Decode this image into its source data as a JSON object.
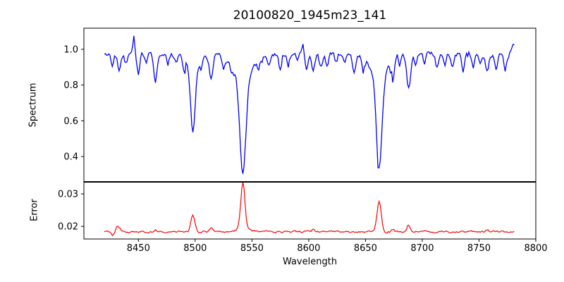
{
  "chart_data": {
    "type": "line",
    "title": "20100820_1945m23_141",
    "xlabel": "Wavelength",
    "grid": false,
    "legend": "none",
    "xlim": [
      8402,
      8800
    ],
    "xtick_values": [
      8450,
      8500,
      8550,
      8600,
      8650,
      8700,
      8750,
      8800
    ],
    "xtick_labels": [
      "8450",
      "8500",
      "8550",
      "8600",
      "8650",
      "8700",
      "8750",
      "8800"
    ],
    "x_sampling": {
      "start": 8420,
      "end": 8781,
      "step": 1
    },
    "seed": 42,
    "panels": [
      {
        "name": "spectrum",
        "ylabel": "Spectrum",
        "color": "#0000ff",
        "ylim": [
          0.258,
          1.118
        ],
        "ytick_values": [
          0.4,
          0.6,
          0.8,
          1.0
        ],
        "ytick_labels": [
          "0.4",
          "0.6",
          "0.8",
          "1.0"
        ],
        "continuum": 0.97,
        "noise": 0.025,
        "absorption_lines_center_depth_sigma": [
          [
            8427,
            0.05,
            1.0
          ],
          [
            8433,
            0.08,
            1.3
          ],
          [
            8439,
            0.05,
            1.0
          ],
          [
            8450,
            0.12,
            1.2
          ],
          [
            8457,
            0.05,
            1.0
          ],
          [
            8465,
            0.15,
            1.5
          ],
          [
            8476,
            0.06,
            1.0
          ],
          [
            8483,
            0.05,
            1.0
          ],
          [
            8490,
            0.06,
            1.0
          ],
          [
            8498,
            0.37,
            2.0
          ],
          [
            8498,
            0.06,
            6.0
          ],
          [
            8505,
            0.05,
            1.0
          ],
          [
            8514,
            0.12,
            1.5
          ],
          [
            8525,
            0.07,
            1.2
          ],
          [
            8532,
            0.05,
            1.0
          ],
          [
            8542,
            0.55,
            2.6
          ],
          [
            8542,
            0.12,
            9.0
          ],
          [
            8556,
            0.05,
            1.0
          ],
          [
            8565,
            0.05,
            1.0
          ],
          [
            8575,
            0.08,
            1.3
          ],
          [
            8582,
            0.06,
            1.0
          ],
          [
            8590,
            0.05,
            1.0
          ],
          [
            8598,
            0.07,
            1.2
          ],
          [
            8604,
            0.1,
            1.3
          ],
          [
            8611,
            0.06,
            1.0
          ],
          [
            8616,
            0.07,
            1.2
          ],
          [
            8624,
            0.05,
            1.0
          ],
          [
            8632,
            0.05,
            1.0
          ],
          [
            8640,
            0.085,
            1.3
          ],
          [
            8648,
            0.08,
            1.2
          ],
          [
            8662,
            0.52,
            2.4
          ],
          [
            8662,
            0.115,
            8.0
          ],
          [
            8674,
            0.11,
            1.4
          ],
          [
            8680,
            0.05,
            1.0
          ],
          [
            8688,
            0.2,
            1.8
          ],
          [
            8694,
            0.06,
            1.0
          ],
          [
            8702,
            0.05,
            1.0
          ],
          [
            8713,
            0.07,
            1.2
          ],
          [
            8720,
            0.05,
            1.0
          ],
          [
            8727,
            0.07,
            1.2
          ],
          [
            8736,
            0.09,
            1.3
          ],
          [
            8745,
            0.07,
            1.2
          ],
          [
            8751,
            0.06,
            1.0
          ],
          [
            8757,
            0.1,
            1.3
          ],
          [
            8765,
            0.08,
            1.2
          ],
          [
            8773,
            0.09,
            1.3
          ]
        ],
        "emission_spikes_center_height_sigma": [
          [
            8446,
            0.1,
            0.8
          ],
          [
            8595,
            0.07,
            0.8
          ],
          [
            8780,
            0.06,
            1.5
          ]
        ],
        "deep_line_minima": {
          "8498": 0.54,
          "8542": 0.3,
          "8662": 0.335
        }
      },
      {
        "name": "error",
        "ylabel": "Error",
        "color": "#ff0000",
        "ylim": [
          0.0161,
          0.0337
        ],
        "ytick_values": [
          0.02,
          0.03
        ],
        "ytick_labels": [
          "0.02",
          "0.03"
        ],
        "baseline": 0.0183,
        "noise": 0.0005,
        "peaks_center_height_sigma": [
          [
            8427,
            -0.001,
            1.0
          ],
          [
            8431,
            0.0013,
            1.0
          ],
          [
            8433,
            0.0012,
            1.5
          ],
          [
            8465,
            0.0008,
            1.2
          ],
          [
            8498,
            0.0052,
            1.8
          ],
          [
            8514,
            0.0012,
            1.2
          ],
          [
            8542,
            0.0142,
            1.8
          ],
          [
            8542,
            0.0012,
            5.0
          ],
          [
            8604,
            0.0008,
            1.2
          ],
          [
            8662,
            0.0095,
            1.8
          ],
          [
            8674,
            0.0008,
            1.2
          ],
          [
            8688,
            0.0022,
            1.5
          ],
          [
            8757,
            0.0008,
            1.2
          ]
        ],
        "peak_maxima": {
          "8498": 0.0235,
          "8542": 0.0325,
          "8662": 0.0278
        }
      }
    ]
  }
}
